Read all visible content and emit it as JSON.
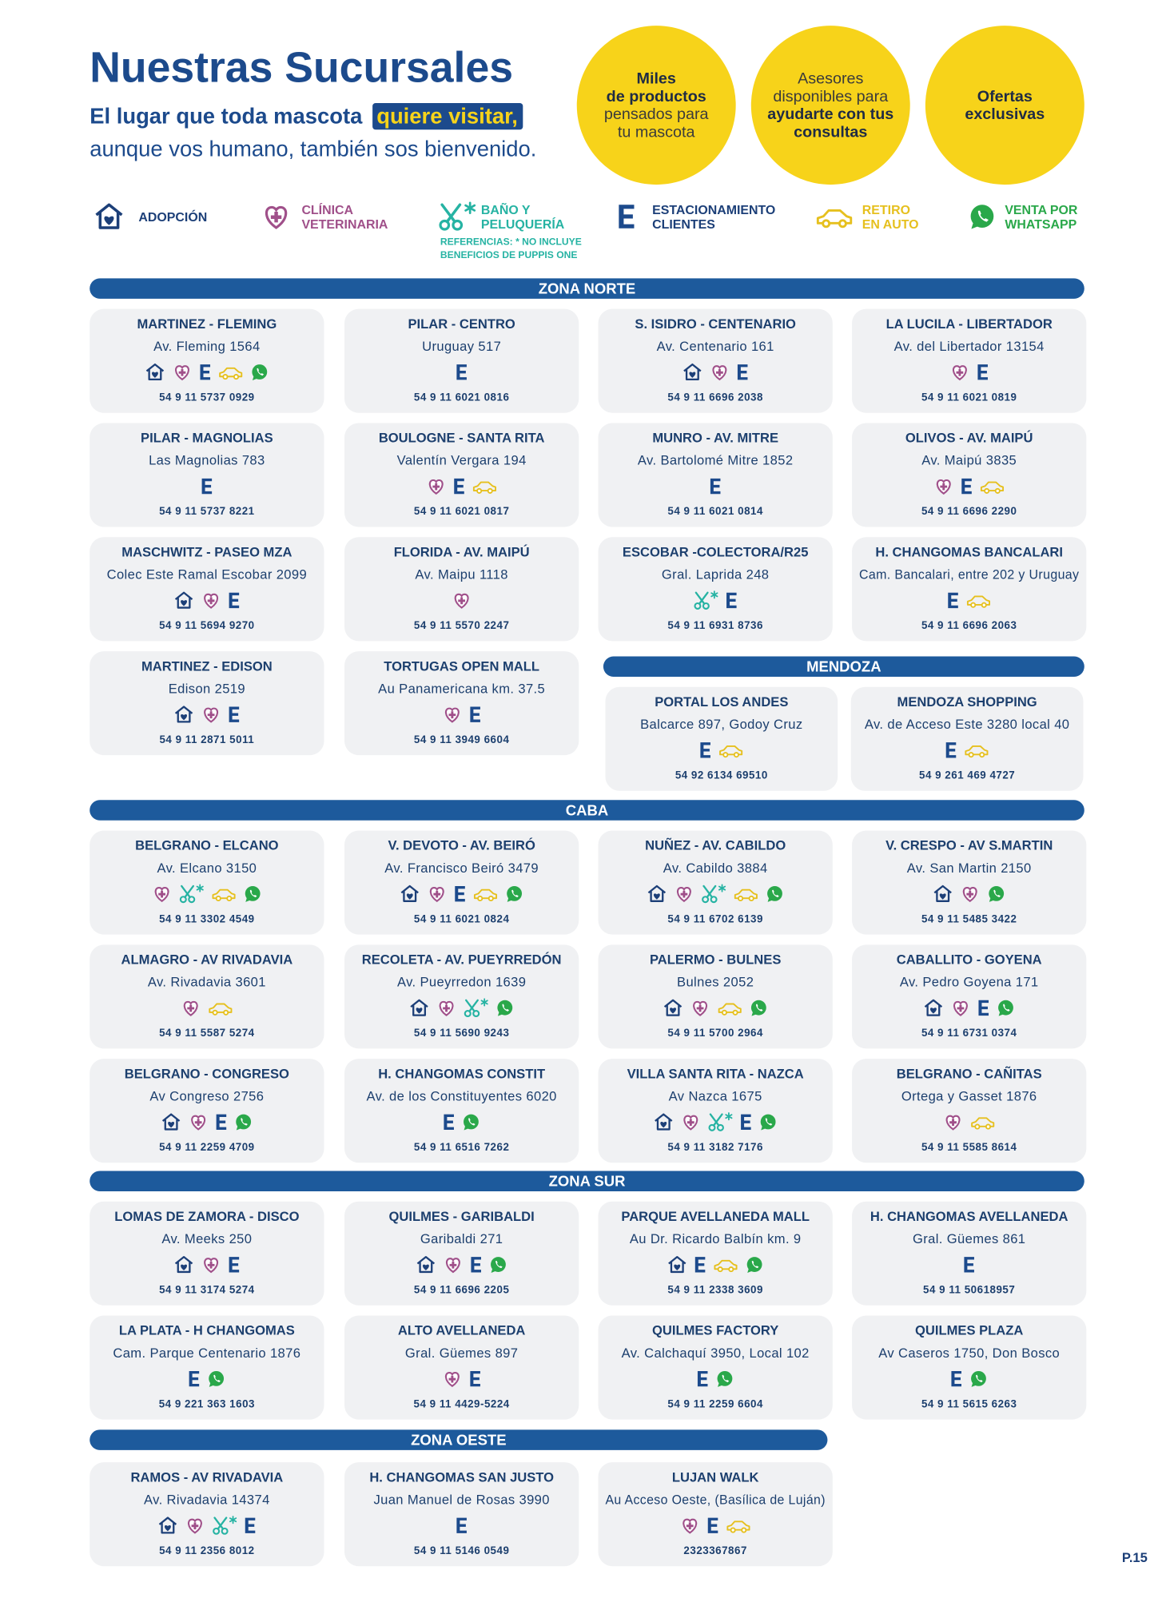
{
  "header": {
    "title": "Nuestras Sucursales",
    "subtitle_lead": "El lugar que toda mascota",
    "subtitle_highlight": "quiere visitar,",
    "subtitle_line2": "aunque vos humano, también sos bienvenido."
  },
  "highlights": [
    {
      "lines": [
        "Miles",
        "de productos",
        "pensados para",
        "tu mascota"
      ]
    },
    {
      "lines": [
        "Asesores",
        "disponibles para",
        "ayudarte con tus",
        "consultas"
      ]
    },
    {
      "lines": [
        "Ofertas",
        "exclusivas"
      ]
    }
  ],
  "legend": [
    {
      "lines": [
        "ADOPCIÓN"
      ]
    },
    {
      "lines": [
        "CLÍNICA",
        "VETERINARIA"
      ]
    },
    {
      "lines": [
        "BAÑO Y",
        "PELUQUERÍA"
      ],
      "note": [
        "REFERENCIAS: * NO INCLUYE",
        "BENEFICIOS DE PUPPIS ONE"
      ]
    },
    {
      "lines": [
        "ESTACIONAMIENTO",
        "CLIENTES"
      ]
    },
    {
      "lines": [
        "RETIRO",
        "EN AUTO"
      ]
    },
    {
      "lines": [
        "VENTA POR",
        "WHATSAPP"
      ]
    }
  ],
  "zones": [
    {
      "name": "ZONA NORTE",
      "stores": [
        {
          "name": "MARTINEZ - FLEMING",
          "address": "Av. Fleming 1564",
          "phone": "54 9 11 5737 0929"
        },
        {
          "name": "PILAR - CENTRO",
          "address": "Uruguay 517",
          "phone": "54 9 11 6021 0816"
        },
        {
          "name": "S. ISIDRO - CENTENARIO",
          "address": "Av. Centenario 161",
          "phone": "54 9 11 6696 2038"
        },
        {
          "name": "LA LUCILA - LIBERTADOR",
          "address": "Av. del Libertador 13154",
          "phone": "54 9 11 6021 0819"
        },
        {
          "name": "PILAR - MAGNOLIAS",
          "address": "Las Magnolias 783",
          "phone": "54 9 11 5737 8221"
        },
        {
          "name": "BOULOGNE - SANTA RITA",
          "address": "Valentín Vergara 194",
          "phone": "54 9 11 6021 0817"
        },
        {
          "name": "MUNRO - AV. MITRE",
          "address": "Av. Bartolomé Mitre 1852",
          "phone": "54 9 11 6021 0814"
        },
        {
          "name": "OLIVOS - AV. MAIPÚ",
          "address": "Av. Maipú 3835",
          "phone": "54 9 11 6696 2290"
        },
        {
          "name": "MASCHWITZ - PASEO MZA",
          "address": "Colec Este Ramal Escobar 2099",
          "phone": "54 9 11 5694 9270"
        },
        {
          "name": "FLORIDA - AV. MAIPÚ",
          "address": "Av. Maipu 1118",
          "phone": "54 9 11 5570 2247"
        },
        {
          "name": "ESCOBAR -COLECTORA/R25",
          "address": "Gral. Laprida 248",
          "phone": "54 9 11 6931 8736"
        },
        {
          "name": "H. CHANGOMAS BANCALARI",
          "address": "Cam. Bancalari, entre 202 y Uruguay",
          "phone": "54 9 11 6696 2063"
        },
        {
          "name": "MARTINEZ - EDISON",
          "address": "Edison 2519",
          "phone": "54 9 11 2871 5011"
        },
        {
          "name": "TORTUGAS OPEN MALL",
          "address": "Au Panamericana km. 37.5",
          "phone": "54 9 11 3949 6604"
        }
      ]
    },
    {
      "name": "MENDOZA",
      "stores": [
        {
          "name": "PORTAL LOS ANDES",
          "address": "Balcarce 897, Godoy Cruz",
          "phone": "54 92 6134 69510"
        },
        {
          "name": "MENDOZA SHOPPING",
          "address": "Av. de Acceso Este 3280 local 40",
          "phone": "54 9 261 469 4727"
        }
      ]
    },
    {
      "name": "CABA",
      "stores": [
        {
          "name": "BELGRANO - ELCANO",
          "address": "Av. Elcano 3150",
          "phone": "54 9 11 3302 4549"
        },
        {
          "name": "V. DEVOTO - AV. BEIRÓ",
          "address": "Av. Francisco Beiró 3479",
          "phone": "54 9 11 6021 0824"
        },
        {
          "name": "NUÑEZ - AV. CABILDO",
          "address": "Av. Cabildo 3884",
          "phone": "54 9 11 6702 6139"
        },
        {
          "name": "V. CRESPO - AV S.MARTIN",
          "address": "Av. San Martin 2150",
          "phone": "54 9 11 5485 3422"
        },
        {
          "name": "ALMAGRO - AV RIVADAVIA",
          "address": "Av. Rivadavia 3601",
          "phone": "54 9 11 5587 5274"
        },
        {
          "name": "RECOLETA - AV. PUEYRREDÓN",
          "address": "Av. Pueyrredon 1639",
          "phone": "54 9 11 5690 9243"
        },
        {
          "name": "PALERMO - BULNES",
          "address": "Bulnes 2052",
          "phone": "54 9 11 5700 2964"
        },
        {
          "name": "CABALLITO - GOYENA",
          "address": "Av. Pedro Goyena 171",
          "phone": "54 9 11 6731 0374"
        },
        {
          "name": "BELGRANO - CONGRESO",
          "address": "Av Congreso 2756",
          "phone": "54 9 11 2259 4709"
        },
        {
          "name": "H. CHANGOMAS CONSTIT",
          "address": "Av. de los Constituyentes 6020",
          "phone": "54 9 11 6516 7262"
        },
        {
          "name": "VILLA SANTA RITA - NAZCA",
          "address": "Av Nazca 1675",
          "phone": "54 9 11 3182 7176"
        },
        {
          "name": "BELGRANO - CAÑITAS",
          "address": "Ortega y Gasset 1876",
          "phone": "54 9 11 5585 8614"
        }
      ]
    },
    {
      "name": "ZONA SUR",
      "stores": [
        {
          "name": "LOMAS DE ZAMORA - DISCO",
          "address": "Av. Meeks 250",
          "phone": "54 9 11 3174 5274"
        },
        {
          "name": "QUILMES - GARIBALDI",
          "address": "Garibaldi 271",
          "phone": "54 9 11 6696 2205"
        },
        {
          "name": "PARQUE AVELLANEDA MALL",
          "address": "Au Dr. Ricardo Balbín km. 9",
          "phone": "54 9 11 2338 3609"
        },
        {
          "name": "H. CHANGOMAS AVELLANEDA",
          "address": "Gral. Güemes 861",
          "phone": "54 9 11 50618957"
        },
        {
          "name": "LA PLATA - H CHANGOMAS",
          "address": "Cam. Parque Centenario 1876",
          "phone": "54 9 221 363 1603"
        },
        {
          "name": "ALTO AVELLANEDA",
          "address": "Gral. Güemes 897",
          "phone": "54 9 11 4429-5224"
        },
        {
          "name": "QUILMES FACTORY",
          "address": "Av. Calchaquí 3950, Local 102",
          "phone": "54 9 11 2259 6604"
        },
        {
          "name": "QUILMES PLAZA",
          "address": "Av Caseros 1750, Don Bosco",
          "phone": "54 9 11 5615 6263"
        }
      ]
    },
    {
      "name": "ZONA OESTE",
      "stores": [
        {
          "name": "RAMOS - AV RIVADAVIA",
          "address": "Av. Rivadavia 14374",
          "phone": "54 9 11 2356 8012"
        },
        {
          "name": "H. CHANGOMAS SAN JUSTO",
          "address": "Juan Manuel de Rosas 3990",
          "phone": "54 9 11 5146 0549"
        },
        {
          "name": "LUJAN WALK",
          "address": "Au Acceso Oeste, (Basílica de Luján)",
          "phone": "2323367867"
        }
      ]
    }
  ],
  "page_number": "P.15"
}
